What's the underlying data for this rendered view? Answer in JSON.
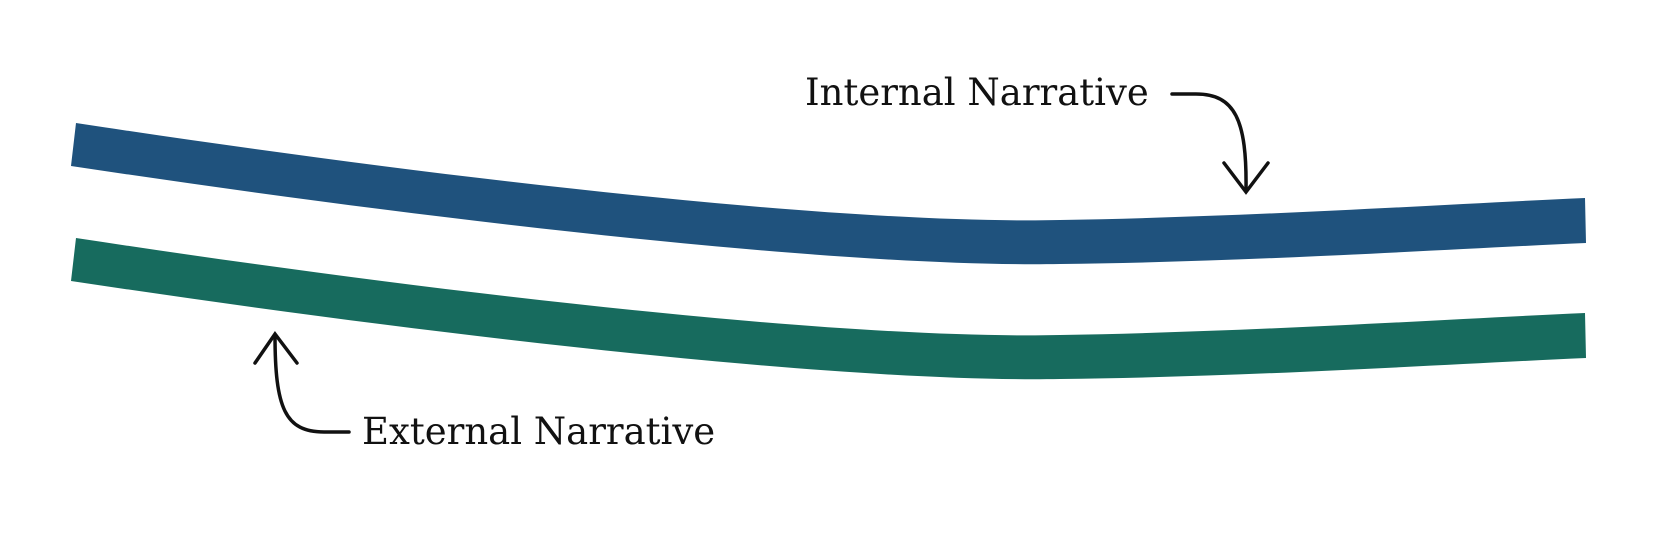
{
  "labels": {
    "internal": "Internal Narrative",
    "external": "External Narrative"
  },
  "colors": {
    "internal_band": "#1F527D",
    "external_band": "#176B5E",
    "annotation": "#111111",
    "background": "#FFFFFF"
  }
}
